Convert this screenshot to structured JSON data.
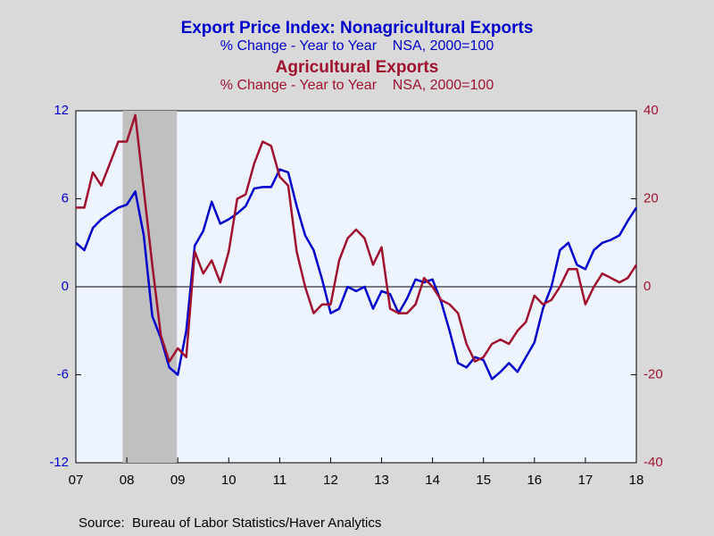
{
  "chart_data": {
    "type": "line",
    "title": "Export Price Index: Nonagricultural Exports",
    "subtitle": "% Change - Year to Year    NSA, 2000=100",
    "title2": "Agricultural Exports",
    "subtitle2": "% Change - Year to Year    NSA, 2000=100",
    "source": "Source:  Bureau of Labor Statistics/Haver Analytics",
    "categories": [
      "07",
      null,
      null,
      null,
      null,
      null,
      "08",
      null,
      null,
      null,
      null,
      null,
      "09",
      null,
      null,
      null,
      null,
      null,
      "10",
      null,
      null,
      null,
      null,
      null,
      "11",
      null,
      null,
      null,
      null,
      null,
      "12",
      null,
      null,
      null,
      null,
      null,
      "13",
      null,
      null,
      null,
      null,
      null,
      "14",
      null,
      null,
      null,
      null,
      null,
      "15",
      null,
      null,
      null,
      null,
      null,
      "16",
      null,
      null,
      null,
      null,
      null,
      "17",
      null,
      null,
      null,
      null,
      null,
      "18"
    ],
    "series": [
      {
        "name": "Export Price Index: Nonagricultural Exports",
        "color": "#0000cc",
        "axis": "y",
        "values": [
          3,
          2.5,
          4,
          4.6,
          5.0,
          5.4,
          5.6,
          6.5,
          3.5,
          -2.0,
          -3.5,
          -5.5,
          -6.0,
          -3.0,
          2.8,
          3.8,
          5.8,
          4.3,
          4.6,
          5.0,
          5.5,
          6.7,
          6.8,
          6.8,
          8.0,
          7.8,
          5.5,
          3.5,
          2.5,
          0.5,
          -1.8,
          -1.5,
          0,
          -0.3,
          0,
          -1.5,
          -0.3,
          -0.5,
          -1.8,
          -0.8,
          0.5,
          0.3,
          0.5,
          -1.0,
          -3.0,
          -5.2,
          -5.5,
          -4.8,
          -5.0,
          -6.3,
          -5.8,
          -5.2,
          -5.8,
          -4.8,
          -3.8,
          -1.5,
          0,
          2.5,
          3.0,
          1.5,
          1.2,
          2.5,
          3.0,
          3.2,
          3.5,
          4.5,
          5.4
        ]
      },
      {
        "name": "Agricultural Exports",
        "color": "#a0112e",
        "axis": "y2",
        "values": [
          18,
          18,
          26,
          23,
          28,
          33,
          33,
          39,
          22,
          5,
          -11,
          -17,
          -14,
          -16,
          8,
          3,
          6,
          1,
          8,
          20,
          21,
          28,
          33,
          32,
          25,
          23,
          8,
          0,
          -6,
          -4,
          -4,
          6,
          11,
          13,
          11,
          5,
          9,
          -5,
          -6,
          -6,
          -4,
          2,
          0,
          -3,
          -4,
          -6,
          -13,
          -17,
          -16,
          -13,
          -12,
          -13,
          -10,
          -8,
          -2,
          -4,
          -3,
          0,
          4,
          4,
          -4,
          0,
          3,
          2,
          1,
          2,
          5
        ]
      }
    ],
    "ylim": [
      -12,
      12
    ],
    "yticks": [
      -12,
      -6,
      0,
      6,
      12
    ],
    "y2lim": [
      -40,
      40
    ],
    "y2ticks": [
      -40,
      -20,
      0,
      20,
      40
    ],
    "shading": {
      "start": 5.5,
      "end": 11.9,
      "color": "#c0c0c0"
    },
    "zero_line": true
  }
}
